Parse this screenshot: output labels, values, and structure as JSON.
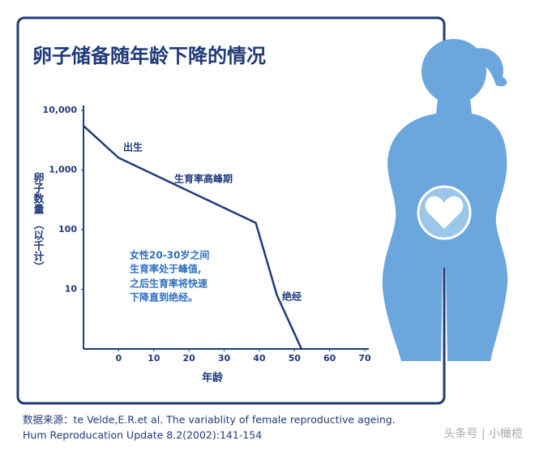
{
  "chart_data": {
    "type": "line",
    "title": "卵子储备随年龄下降的情况",
    "x": [
      -10,
      0,
      39,
      45,
      52
    ],
    "values": [
      5500,
      1600,
      130,
      8,
      1
    ],
    "color": "#1f3a7a",
    "log_scale": true,
    "grid": false,
    "xlim": [
      -10,
      70
    ],
    "xticks": [
      0,
      10,
      20,
      30,
      40,
      50,
      60,
      70
    ],
    "ylim": [
      1,
      10000
    ],
    "yticks": [
      {
        "value": 10000,
        "label": "10,000"
      },
      {
        "value": 1000,
        "label": "1,000"
      },
      100,
      10
    ],
    "xlabel": "年龄",
    "ylabel": [
      "卵子数量",
      "（以千计）"
    ],
    "annotations": {
      "birth": "出生",
      "peak": "生育率高峰期",
      "menopause": "绝经",
      "note": [
        "女性20-30岁之间",
        "生育率处于峰值,",
        "之后生育率将快速",
        "下降直到绝经。"
      ]
    },
    "source": [
      "数据来源：te Velde,E.R.et al. The variablity of female reproductive ageing.",
      "Hum Reproducation Update 8.2(2002):141-154"
    ],
    "watermark": "头条号 | 小橄榄"
  }
}
